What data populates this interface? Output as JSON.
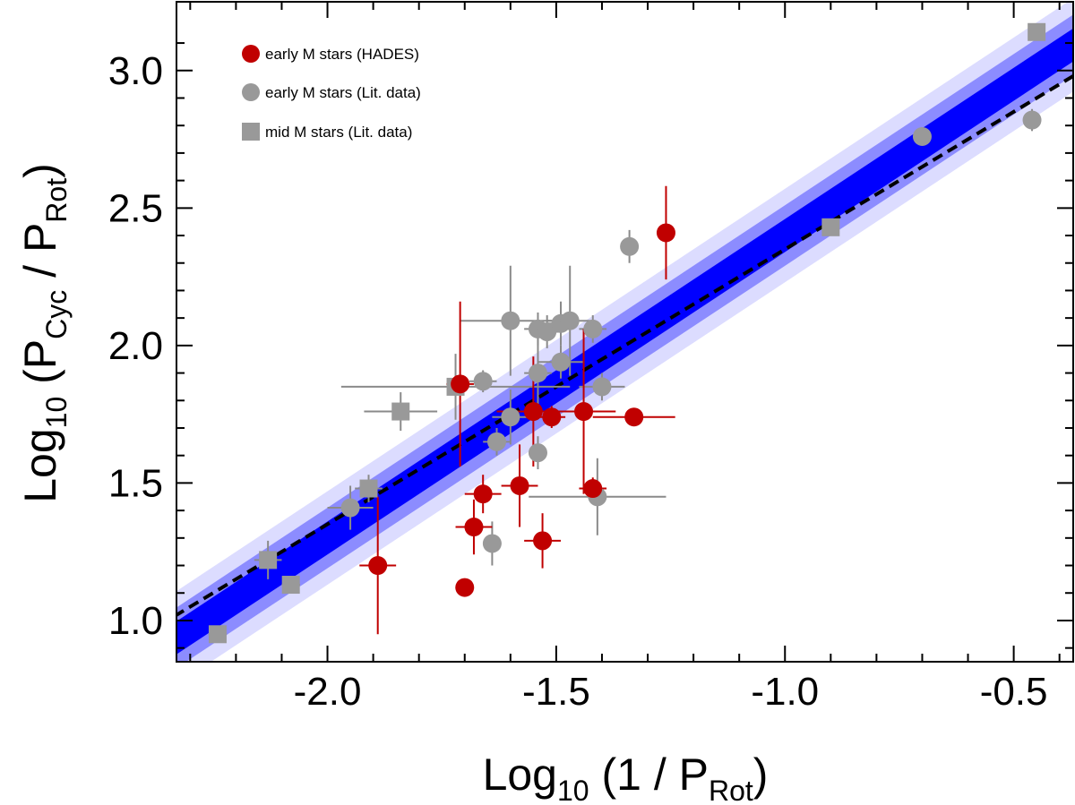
{
  "chart_data": {
    "type": "scatter",
    "xlabel": {
      "prefix": "Log",
      "base": "10",
      "open": " (1 / P",
      "sub": "Rot",
      "close": ")"
    },
    "ylabel": {
      "prefix": "Log",
      "base": "10",
      "open": " (P",
      "sub1": "Cyc",
      "mid": " / P",
      "sub2": "Rot",
      "close": ")"
    },
    "xlim": [
      -2.33,
      -0.37
    ],
    "ylim": [
      0.85,
      3.25
    ],
    "xticks": [
      -2.0,
      -1.5,
      -1.0,
      -0.5
    ],
    "xtick_labels": [
      "-2.0",
      "-1.5",
      "-1.0",
      "-0.5"
    ],
    "yticks": [
      1.0,
      1.5,
      2.0,
      2.5,
      3.0
    ],
    "ytick_labels": [
      "1.0",
      "1.5",
      "2.0",
      "2.5",
      "3.0"
    ],
    "grid": false,
    "legend_position": "top-left",
    "colors": {
      "hades": "#c00000",
      "lit": "#999999",
      "fit_line": "#0000ff",
      "band_inner": "#8c8cff",
      "band_outer": "#dcdcff",
      "dashed": "#000000"
    },
    "fit": {
      "slope": 1.1,
      "intercept": 3.5,
      "band_inner": 0.06,
      "band_mid": 0.11,
      "band_outer": 0.17
    },
    "dashed_fit": {
      "slope": 1.0,
      "intercept": 3.35
    },
    "series": [
      {
        "name": "early M stars (HADES)",
        "marker": "circle",
        "color": "#c00000",
        "points": [
          {
            "x": -1.26,
            "y": 2.41,
            "xerr": 0.0,
            "yerr": 0.17
          },
          {
            "x": -1.71,
            "y": 1.86,
            "xerr": 0.03,
            "yerr": 0.3
          },
          {
            "x": -1.55,
            "y": 1.76,
            "xerr": 0.08,
            "yerr": 0.2
          },
          {
            "x": -1.51,
            "y": 1.74,
            "xerr": 0.03,
            "yerr": 0.04
          },
          {
            "x": -1.44,
            "y": 1.76,
            "xerr": 0.07,
            "yerr": 0.3
          },
          {
            "x": -1.33,
            "y": 1.74,
            "xerr": 0.09,
            "yerr": 0.0
          },
          {
            "x": -1.58,
            "y": 1.49,
            "xerr": 0.04,
            "yerr": 0.15
          },
          {
            "x": -1.42,
            "y": 1.48,
            "xerr": 0.03,
            "yerr": 0.04
          },
          {
            "x": -1.66,
            "y": 1.46,
            "xerr": 0.04,
            "yerr": 0.07
          },
          {
            "x": -1.68,
            "y": 1.34,
            "xerr": 0.04,
            "yerr": 0.1
          },
          {
            "x": -1.53,
            "y": 1.29,
            "xerr": 0.04,
            "yerr": 0.1
          },
          {
            "x": -1.89,
            "y": 1.2,
            "xerr": 0.04,
            "yerr": 0.25
          },
          {
            "x": -1.7,
            "y": 1.12,
            "xerr": 0.02,
            "yerr": 0.03
          }
        ]
      },
      {
        "name": "early M stars (Lit. data)",
        "marker": "circle",
        "color": "#999999",
        "points": [
          {
            "x": -0.46,
            "y": 2.82,
            "xerr": 0.0,
            "yerr": 0.04
          },
          {
            "x": -0.7,
            "y": 2.76,
            "xerr": 0.0,
            "yerr": 0.0
          },
          {
            "x": -1.34,
            "y": 2.36,
            "xerr": 0.01,
            "yerr": 0.06
          },
          {
            "x": -1.6,
            "y": 2.09,
            "xerr": 0.11,
            "yerr": 0.2
          },
          {
            "x": -1.54,
            "y": 2.06,
            "xerr": 0.03,
            "yerr": 0.06
          },
          {
            "x": -1.52,
            "y": 2.05,
            "xerr": 0.03,
            "yerr": 0.06
          },
          {
            "x": -1.49,
            "y": 2.08,
            "xerr": 0.03,
            "yerr": 0.08
          },
          {
            "x": -1.47,
            "y": 2.09,
            "xerr": 0.05,
            "yerr": 0.2
          },
          {
            "x": -1.42,
            "y": 2.06,
            "xerr": 0.03,
            "yerr": 0.05
          },
          {
            "x": -1.49,
            "y": 1.94,
            "xerr": 0.05,
            "yerr": 0.06
          },
          {
            "x": -1.54,
            "y": 1.9,
            "xerr": 0.03,
            "yerr": 0.16
          },
          {
            "x": -1.66,
            "y": 1.87,
            "xerr": 0.03,
            "yerr": 0.04
          },
          {
            "x": -1.4,
            "y": 1.85,
            "xerr": 0.05,
            "yerr": 0.05
          },
          {
            "x": -1.6,
            "y": 1.74,
            "xerr": 0.04,
            "yerr": 0.1
          },
          {
            "x": -1.63,
            "y": 1.65,
            "xerr": 0.03,
            "yerr": 0.05
          },
          {
            "x": -1.54,
            "y": 1.61,
            "xerr": 0.02,
            "yerr": 0.06
          },
          {
            "x": -1.41,
            "y": 1.45,
            "xerr": 0.15,
            "yerr": 0.14
          },
          {
            "x": -1.95,
            "y": 1.41,
            "xerr": 0.05,
            "yerr": 0.08
          },
          {
            "x": -1.64,
            "y": 1.28,
            "xerr": 0.02,
            "yerr": 0.08
          }
        ]
      },
      {
        "name": "mid M stars (Lit. data)",
        "marker": "square",
        "color": "#999999",
        "points": [
          {
            "x": -0.45,
            "y": 3.14,
            "xerr": 0.0,
            "yerr": 0.0
          },
          {
            "x": -0.9,
            "y": 2.43,
            "xerr": 0.0,
            "yerr": 0.0
          },
          {
            "x": -1.72,
            "y": 1.85,
            "xerr": 0.25,
            "yerr": 0.12
          },
          {
            "x": -1.84,
            "y": 1.76,
            "xerr": 0.08,
            "yerr": 0.07
          },
          {
            "x": -1.91,
            "y": 1.48,
            "xerr": 0.03,
            "yerr": 0.05
          },
          {
            "x": -2.13,
            "y": 1.22,
            "xerr": 0.03,
            "yerr": 0.07
          },
          {
            "x": -2.08,
            "y": 1.13,
            "xerr": 0.02,
            "yerr": 0.03
          },
          {
            "x": -2.24,
            "y": 0.95,
            "xerr": 0.02,
            "yerr": 0.03
          }
        ]
      }
    ]
  }
}
